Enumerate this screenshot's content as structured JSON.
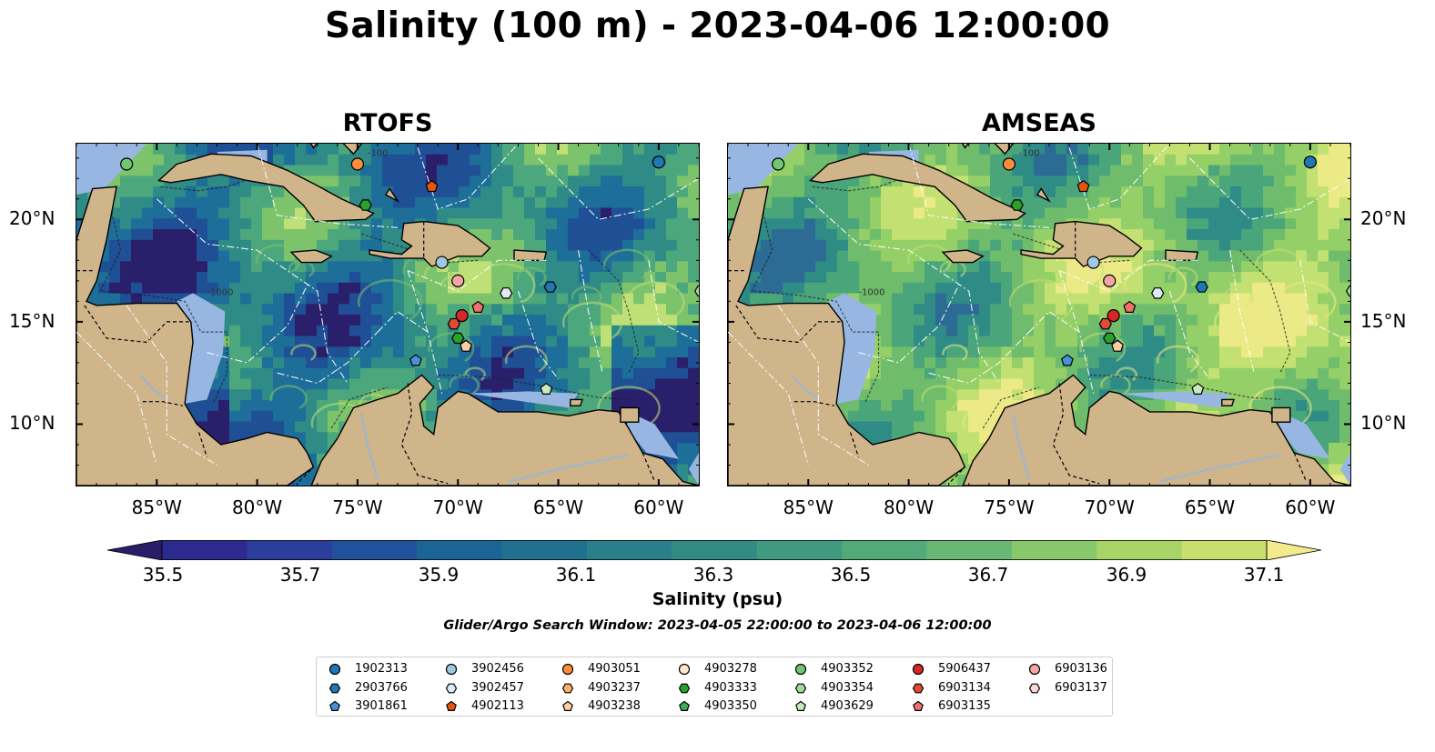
{
  "title": "Salinity (100 m) - 2023-04-06 12:00:00",
  "panels": [
    {
      "name": "rtofs",
      "title": "RTOFS",
      "palette": [
        "#2a1f6b",
        "#1f4f94",
        "#1e6e9a",
        "#2f8b86",
        "#4da77c",
        "#7cc36b",
        "#bfe077"
      ]
    },
    {
      "name": "amseas",
      "title": "AMSEAS",
      "palette": [
        "#2b6b94",
        "#2f8b86",
        "#4aa57a",
        "#6ebc6c",
        "#95cf67",
        "#c3e072",
        "#ecea86"
      ]
    }
  ],
  "map": {
    "lon_ticks": [
      "85°W",
      "80°W",
      "75°W",
      "70°W",
      "65°W",
      "60°W"
    ],
    "lat_ticks": [
      "20°N",
      "15°N",
      "10°N"
    ],
    "land_color": "#d0b48a",
    "shelf_color": "#97b7e2",
    "contour_labels": [
      "-100",
      "-1000"
    ]
  },
  "colorbar": {
    "label": "Salinity (psu)",
    "ticks": [
      "35.5",
      "35.7",
      "35.9",
      "36.1",
      "36.3",
      "36.5",
      "36.7",
      "36.9",
      "37.1"
    ],
    "colors": [
      "#281d66",
      "#2c2a8f",
      "#2b3d9d",
      "#22519c",
      "#1b6596",
      "#20718f",
      "#297f8a",
      "#338b86",
      "#3f9a80",
      "#52aa78",
      "#68b774",
      "#88c76a",
      "#a6d466",
      "#c8df6d",
      "#f3e98d"
    ]
  },
  "search_window": "Glider/Argo Search Window: 2023-04-05 22:00:00 to 2023-04-06 12:00:00",
  "legend": [
    {
      "label": "1902313",
      "marker": "circle",
      "color": "#1f77b4"
    },
    {
      "label": "2903766",
      "marker": "hexagon",
      "color": "#1f77b4"
    },
    {
      "label": "3901861",
      "marker": "pentagon",
      "color": "#4a90d9"
    },
    {
      "label": "3902456",
      "marker": "circle",
      "color": "#9ecae1"
    },
    {
      "label": "3902457",
      "marker": "hexagon",
      "color": "#deebf7"
    },
    {
      "label": "4902113",
      "marker": "pentagon",
      "color": "#e6550d"
    },
    {
      "label": "4903051",
      "marker": "circle",
      "color": "#fd8d3c"
    },
    {
      "label": "4903237",
      "marker": "hexagon",
      "color": "#fdae6b"
    },
    {
      "label": "4903238",
      "marker": "pentagon",
      "color": "#fdd0a2"
    },
    {
      "label": "4903278",
      "marker": "circle",
      "color": "#fee6ce"
    },
    {
      "label": "4903333",
      "marker": "hexagon",
      "color": "#2ca02c"
    },
    {
      "label": "4903350",
      "marker": "pentagon",
      "color": "#41ab5d"
    },
    {
      "label": "4903352",
      "marker": "circle",
      "color": "#74c476"
    },
    {
      "label": "4903354",
      "marker": "hexagon",
      "color": "#a1d99b"
    },
    {
      "label": "4903629",
      "marker": "pentagon",
      "color": "#c7e9c0"
    },
    {
      "label": "5906437",
      "marker": "circle",
      "color": "#d62728"
    },
    {
      "label": "6903134",
      "marker": "hexagon",
      "color": "#e34a33"
    },
    {
      "label": "6903135",
      "marker": "pentagon",
      "color": "#f07070"
    },
    {
      "label": "6903136",
      "marker": "circle",
      "color": "#f4a6a6"
    },
    {
      "label": "6903137",
      "marker": "hexagon",
      "color": "#fcd5d5"
    }
  ],
  "floats_on_map": [
    {
      "label": "4903352",
      "lon": -86.5,
      "lat": 22.7
    },
    {
      "label": "4903051",
      "lon": -75.0,
      "lat": 22.7
    },
    {
      "label": "4902113",
      "lon": -71.3,
      "lat": 21.6
    },
    {
      "label": "4903333",
      "lon": -74.6,
      "lat": 20.7
    },
    {
      "label": "1902313",
      "lon": -60.0,
      "lat": 22.8
    },
    {
      "label": "3902456",
      "lon": -70.8,
      "lat": 17.9
    },
    {
      "label": "6903136",
      "lon": -70.0,
      "lat": 17.0
    },
    {
      "label": "3902457",
      "lon": -67.6,
      "lat": 16.4
    },
    {
      "label": "2903766",
      "lon": -65.4,
      "lat": 16.7
    },
    {
      "label": "6903135",
      "lon": -69.0,
      "lat": 15.7
    },
    {
      "label": "5906437",
      "lon": -69.8,
      "lat": 15.3
    },
    {
      "label": "6903134",
      "lon": -70.2,
      "lat": 14.9
    },
    {
      "label": "4903333",
      "lon": -70.0,
      "lat": 14.2
    },
    {
      "label": "4903238",
      "lon": -69.6,
      "lat": 13.8
    },
    {
      "label": "3901861",
      "lon": -72.1,
      "lat": 13.1
    },
    {
      "label": "4903629",
      "lon": -65.6,
      "lat": 11.7
    },
    {
      "label": "4903354",
      "lon": -57.9,
      "lat": 16.5
    }
  ]
}
